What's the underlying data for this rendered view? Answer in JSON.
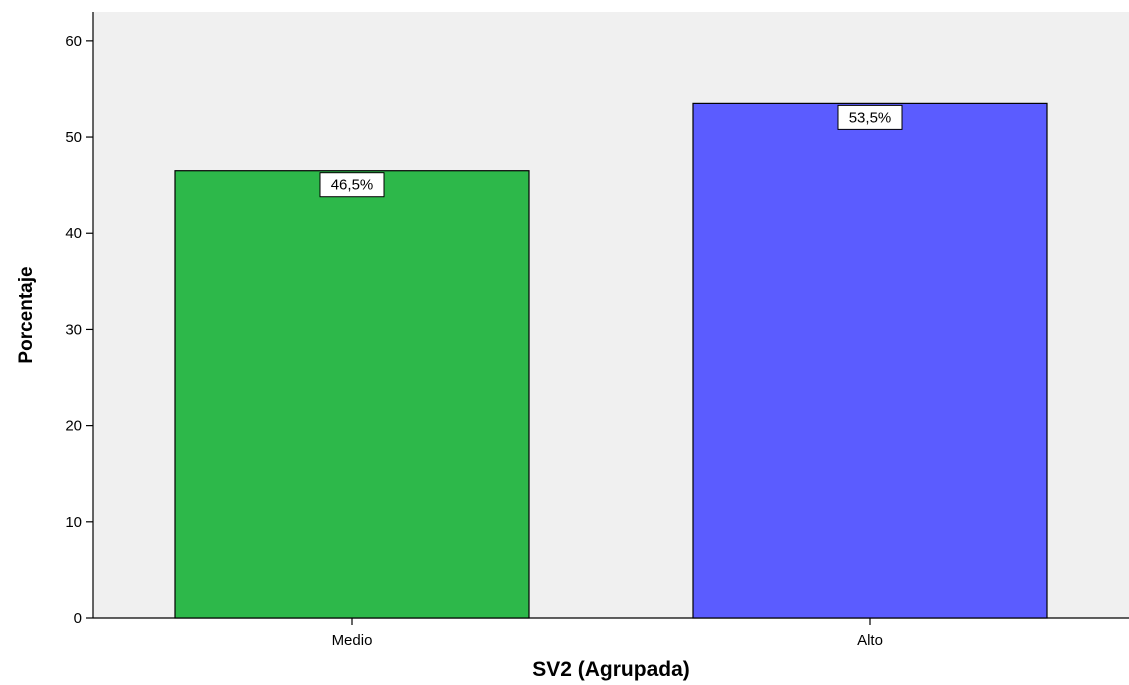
{
  "chart_data": {
    "type": "bar",
    "categories": [
      "Medio",
      "Alto"
    ],
    "values": [
      46.5,
      53.5
    ],
    "data_labels": [
      "46,5%",
      "53,5%"
    ],
    "colors": [
      "#2db84a",
      "#5b5cff"
    ],
    "xlabel": "SV2 (Agrupada)",
    "ylabel": "Porcentaje",
    "ylim": [
      0,
      63
    ],
    "yticks": [
      0,
      10,
      20,
      30,
      40,
      50,
      60
    ],
    "plot_background": "#f0f0f0",
    "grid": false,
    "legend": "none"
  }
}
